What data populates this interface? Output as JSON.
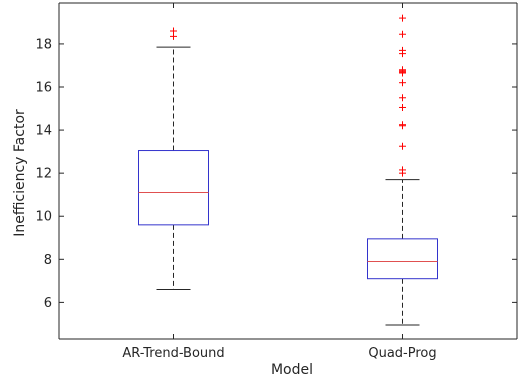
{
  "chart_data": {
    "type": "boxplot",
    "xlabel": "Model",
    "ylabel": "Inefficiency Factor",
    "ylim": [
      4.3,
      19.9
    ],
    "y_ticks": [
      6,
      8,
      10,
      12,
      14,
      16,
      18
    ],
    "y_tick_labels": [
      "6",
      "8",
      "10",
      "12",
      "14",
      "16",
      "18"
    ],
    "categories": [
      "AR-Trend-Bound",
      "Quad-Prog"
    ],
    "boxes": [
      {
        "label": "AR-Trend-Bound",
        "whisker_low": 6.6,
        "q1": 9.6,
        "median": 11.1,
        "q3": 13.05,
        "whisker_high": 17.85,
        "outliers": [
          18.35,
          18.6
        ]
      },
      {
        "label": "Quad-Prog",
        "whisker_low": 4.95,
        "q1": 7.1,
        "median": 7.9,
        "q3": 8.95,
        "whisker_high": 11.7,
        "outliers": [
          12.0,
          12.15,
          13.25,
          14.2,
          14.25,
          15.05,
          15.5,
          16.2,
          16.65,
          16.7,
          16.75,
          16.8,
          17.55,
          17.7,
          18.45,
          19.2
        ]
      }
    ],
    "grid": false,
    "colors": {
      "box": "#3333cc",
      "median": "#e05050",
      "whisker": "#262626",
      "outlier": "#ff0000",
      "axis": "#262626"
    }
  }
}
